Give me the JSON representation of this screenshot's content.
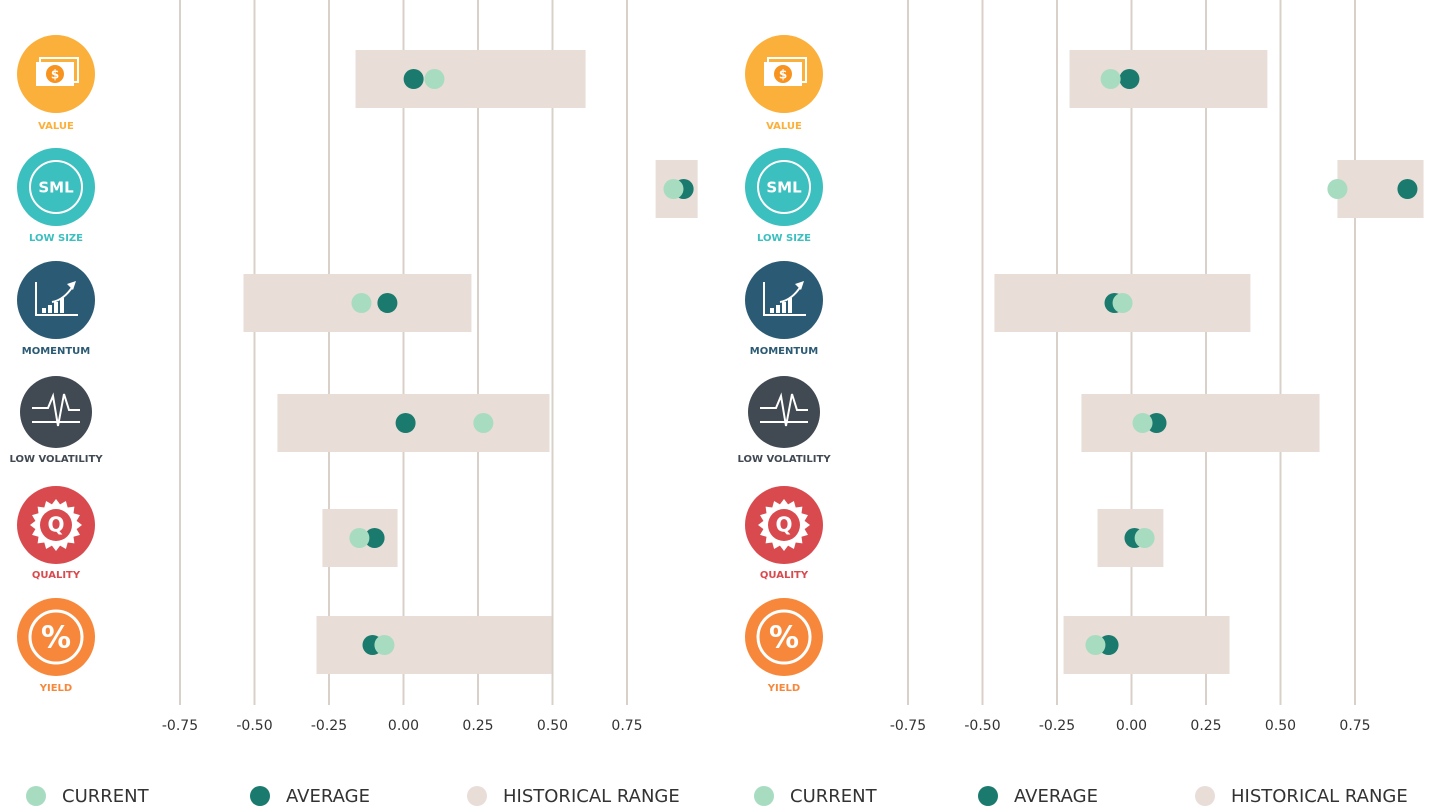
{
  "chart_data": [
    {
      "type": "range",
      "categories": [
        "VALUE",
        "LOW SIZE",
        "MOMENTUM",
        "LOW VOLATILITY",
        "QUALITY",
        "YIELD"
      ],
      "category_colors": [
        "#fbb03b",
        "#3bbfbf",
        "#2b5a74",
        "#414953",
        "#d94a4f",
        "#f7883b"
      ],
      "icon_glyphs": {
        "0": "$",
        "1": "SML",
        "4": "Q",
        "5": "%"
      },
      "series": [
        {
          "name": "CURRENT",
          "color": "#a8dcc0",
          "values": [
            0.104,
            0.906,
            -0.141,
            0.268,
            -0.148,
            -0.064
          ]
        },
        {
          "name": "AVERAGE",
          "color": "#1a7a6e",
          "values": [
            0.034,
            0.94,
            -0.054,
            0.007,
            -0.097,
            -0.104
          ]
        },
        {
          "name": "HISTORICAL RANGE",
          "color": "#e8ddd7",
          "low": [
            -0.161,
            0.846,
            -0.537,
            -0.423,
            -0.272,
            -0.292
          ],
          "high": [
            0.611,
            0.987,
            0.228,
            0.49,
            -0.02,
            0.497
          ]
        }
      ],
      "xlim": [
        -0.75,
        0.75
      ],
      "xticks": [
        -0.75,
        {
          "value": -0.5,
          "label": "-0.50"
        },
        -0.25,
        {
          "value": 0,
          "label": "0.00"
        },
        0.25,
        {
          "value": 0.5,
          "label": "0.50"
        },
        0.75
      ],
      "grid": true
    },
    {
      "type": "range",
      "categories": [
        "VALUE",
        "LOW SIZE",
        "MOMENTUM",
        "LOW VOLATILITY",
        "QUALITY",
        "YIELD"
      ],
      "category_colors": [
        "#fbb03b",
        "#3bbfbf",
        "#2b5a74",
        "#414953",
        "#d94a4f",
        "#f7883b"
      ],
      "icon_glyphs": {
        "0": "$",
        "1": "SML",
        "4": "Q",
        "5": "%"
      },
      "series": [
        {
          "name": "CURRENT",
          "color": "#a8dcc0",
          "values": [
            -0.07,
            0.691,
            -0.03,
            0.037,
            0.044,
            -0.121
          ]
        },
        {
          "name": "AVERAGE",
          "color": "#1a7a6e",
          "values": [
            -0.007,
            0.926,
            -0.057,
            0.084,
            0.01,
            -0.077
          ]
        },
        {
          "name": "HISTORICAL RANGE",
          "color": "#e8ddd7",
          "low": [
            -0.208,
            0.691,
            -0.46,
            -0.168,
            -0.114,
            -0.228
          ],
          "high": [
            0.456,
            0.98,
            0.399,
            0.631,
            0.107,
            0.329
          ]
        }
      ],
      "xlim": [
        -0.75,
        0.75
      ],
      "xticks": [
        -0.75,
        {
          "value": -0.5,
          "label": "-0.50"
        },
        -0.25,
        {
          "value": 0,
          "label": "0.00"
        },
        0.25,
        {
          "value": 0.5,
          "label": "0.50"
        },
        0.75
      ],
      "grid": true
    }
  ]
}
